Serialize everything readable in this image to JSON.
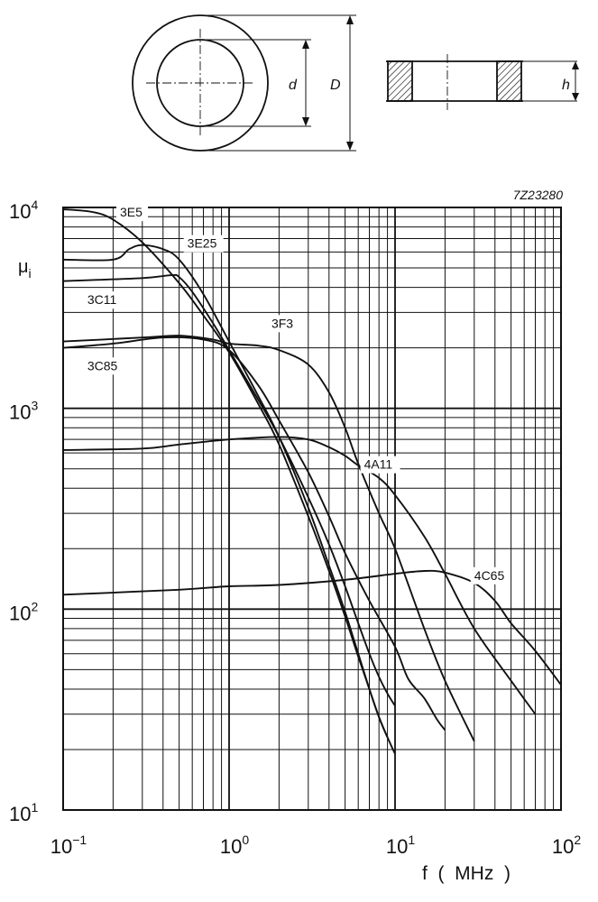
{
  "drawing": {
    "dim_inner": "d",
    "dim_outer": "D",
    "dim_height": "h"
  },
  "chart_data": {
    "type": "line",
    "figure_code": "7Z23280",
    "ylabel_main": "μ",
    "ylabel_sub": "i",
    "xlabel": "f  (  MHz  )",
    "x_scale": "log",
    "y_scale": "log",
    "xlim": [
      0.1,
      100
    ],
    "ylim": [
      10,
      10000
    ],
    "grid": true,
    "x_ticks": [
      {
        "base": "10",
        "exp": "−1",
        "value": 0.1
      },
      {
        "base": "10",
        "exp": "0",
        "value": 1
      },
      {
        "base": "10",
        "exp": "1",
        "value": 10
      },
      {
        "base": "10",
        "exp": "2",
        "value": 100
      }
    ],
    "y_ticks": [
      {
        "base": "10",
        "exp": "1",
        "value": 10
      },
      {
        "base": "10",
        "exp": "2",
        "value": 100
      },
      {
        "base": "10",
        "exp": "3",
        "value": 1000
      },
      {
        "base": "10",
        "exp": "4",
        "value": 10000
      }
    ],
    "series": [
      {
        "name": "3E5",
        "label_at": [
          0.22,
          9000
        ],
        "points": [
          [
            0.1,
            9800
          ],
          [
            0.15,
            9500
          ],
          [
            0.2,
            8700
          ],
          [
            0.3,
            6700
          ],
          [
            0.5,
            4200
          ],
          [
            0.7,
            2900
          ],
          [
            1,
            1900
          ],
          [
            1.5,
            1050
          ],
          [
            2,
            660
          ],
          [
            3,
            290
          ],
          [
            4,
            155
          ],
          [
            5,
            92
          ],
          [
            6,
            58
          ],
          [
            7,
            40
          ],
          [
            8,
            29
          ],
          [
            9,
            23
          ]
        ]
      },
      {
        "name": "3E25",
        "label_at": [
          0.56,
          6300
        ],
        "points": [
          [
            0.1,
            5500
          ],
          [
            0.2,
            5500
          ],
          [
            0.25,
            6200
          ],
          [
            0.3,
            6500
          ],
          [
            0.4,
            6200
          ],
          [
            0.5,
            5500
          ],
          [
            0.7,
            3700
          ],
          [
            1,
            2150
          ],
          [
            1.5,
            1150
          ],
          [
            2,
            720
          ],
          [
            3,
            320
          ],
          [
            4,
            165
          ],
          [
            5,
            97
          ],
          [
            6,
            60
          ],
          [
            7,
            40
          ],
          [
            8,
            29
          ],
          [
            9,
            23
          ],
          [
            10,
            19
          ]
        ]
      },
      {
        "name": "3C11",
        "label_at": [
          0.14,
          3300
        ],
        "points": [
          [
            0.1,
            4300
          ],
          [
            0.3,
            4450
          ],
          [
            0.45,
            4600
          ],
          [
            0.5,
            4500
          ],
          [
            0.6,
            3800
          ],
          [
            0.8,
            2650
          ],
          [
            1,
            1950
          ],
          [
            1.5,
            1100
          ],
          [
            2,
            720
          ],
          [
            3,
            360
          ],
          [
            4,
            210
          ],
          [
            5,
            130
          ],
          [
            6,
            85
          ],
          [
            7,
            60
          ],
          [
            8,
            46
          ],
          [
            9,
            38
          ],
          [
            10,
            33
          ]
        ]
      },
      {
        "name": "3F3",
        "label_at": [
          1.8,
          2520
        ],
        "points": [
          [
            0.1,
            2150
          ],
          [
            0.3,
            2250
          ],
          [
            0.5,
            2300
          ],
          [
            0.8,
            2200
          ],
          [
            1,
            2100
          ],
          [
            1.5,
            2050
          ],
          [
            2,
            1950
          ],
          [
            3,
            1650
          ],
          [
            4,
            1200
          ],
          [
            5,
            800
          ],
          [
            6,
            530
          ],
          [
            8,
            300
          ],
          [
            10,
            200
          ],
          [
            15,
            80
          ],
          [
            20,
            44
          ],
          [
            30,
            22
          ]
        ]
      },
      {
        "name": "3C85",
        "label_at": [
          0.14,
          1550
        ],
        "points": [
          [
            0.1,
            2000
          ],
          [
            0.2,
            2100
          ],
          [
            0.4,
            2250
          ],
          [
            0.7,
            2200
          ],
          [
            1,
            1950
          ],
          [
            1.5,
            1300
          ],
          [
            2,
            870
          ],
          [
            3,
            480
          ],
          [
            4,
            290
          ],
          [
            5,
            190
          ],
          [
            7,
            110
          ],
          [
            10,
            65
          ],
          [
            12,
            45
          ],
          [
            15,
            36
          ],
          [
            18,
            28
          ],
          [
            20,
            25
          ]
        ]
      },
      {
        "name": "4A11",
        "label_at": [
          6.5,
          500
        ],
        "points": [
          [
            0.1,
            620
          ],
          [
            0.3,
            630
          ],
          [
            0.5,
            660
          ],
          [
            1,
            700
          ],
          [
            2,
            720
          ],
          [
            3,
            700
          ],
          [
            4,
            640
          ],
          [
            5,
            580
          ],
          [
            6,
            520
          ],
          [
            8,
            450
          ],
          [
            10,
            370
          ],
          [
            15,
            230
          ],
          [
            20,
            150
          ],
          [
            30,
            80
          ],
          [
            50,
            44
          ],
          [
            70,
            30
          ]
        ]
      },
      {
        "name": "4C65",
        "label_at": [
          30,
          140
        ],
        "points": [
          [
            0.1,
            118
          ],
          [
            0.5,
            125
          ],
          [
            1,
            130
          ],
          [
            2,
            132
          ],
          [
            5,
            140
          ],
          [
            10,
            150
          ],
          [
            15,
            155
          ],
          [
            20,
            152
          ],
          [
            30,
            135
          ],
          [
            40,
            110
          ],
          [
            50,
            85
          ],
          [
            70,
            62
          ],
          [
            100,
            42
          ]
        ]
      }
    ]
  }
}
